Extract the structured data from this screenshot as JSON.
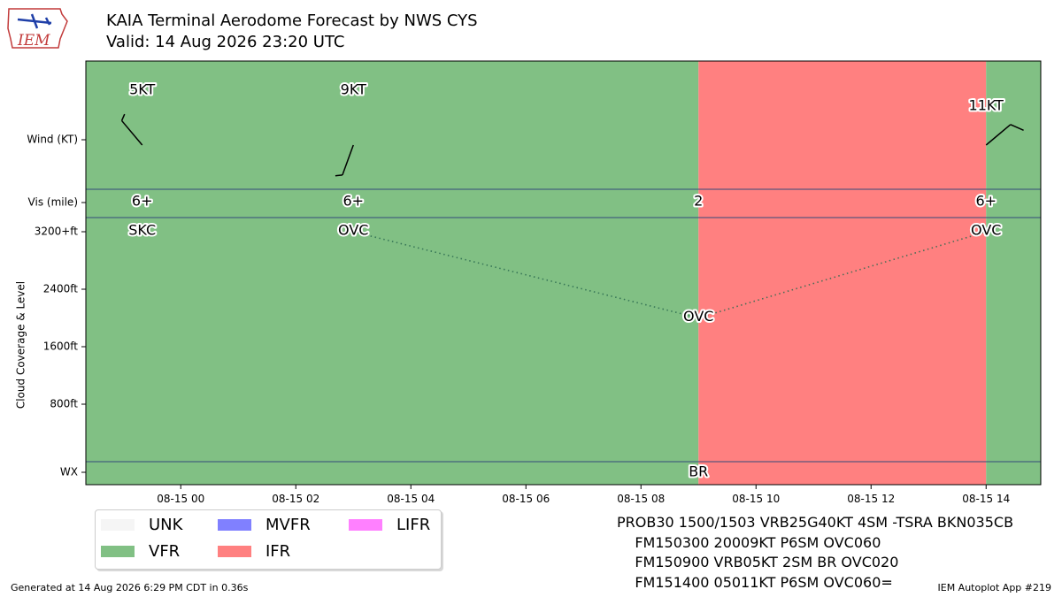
{
  "header": {
    "title": "KAIA Terminal Aerodome Forecast by NWS CYS",
    "valid": "Valid: 14 Aug 2026 23:20 UTC"
  },
  "logo": {
    "text": "IEM",
    "icon": "iowa-state-logo-icon"
  },
  "colors": {
    "UNK": "#f5f5f5",
    "VFR": "#81c084",
    "MVFR": "#8080ff",
    "IFR": "#ff8080",
    "LIFR": "#ff80ff",
    "separator": "#344a7a"
  },
  "chart_data": {
    "type": "timeline",
    "x_ticks": [
      "08-15 00",
      "08-15 02",
      "08-15 04",
      "08-15 06",
      "08-15 08",
      "08-15 10",
      "08-15 12",
      "08-15 14"
    ],
    "x_tick_hours": [
      0,
      2,
      4,
      6,
      8,
      10,
      12,
      14
    ],
    "xlim_hours": [
      -1.65,
      14.95
    ],
    "row_labels": {
      "wind": "Wind (KT)",
      "vis": "Vis (mile)",
      "cloud_axis": "Cloud Coverage & Level",
      "wx": "WX"
    },
    "cloud_ticks": [
      "3200+ft",
      "2400ft",
      "1600ft",
      "800ft"
    ],
    "cloud_tick_values": [
      3200,
      2400,
      1600,
      800
    ],
    "cloud_ylim": [
      -300,
      3700
    ],
    "periods": [
      {
        "start_hour": -1.65,
        "end_hour": 9.0,
        "category": "VFR"
      },
      {
        "start_hour": 9.0,
        "end_hour": 14.0,
        "category": "IFR"
      },
      {
        "start_hour": 14.0,
        "end_hour": 14.95,
        "category": "VFR"
      }
    ],
    "forecasts": [
      {
        "hour": -0.67,
        "wind_label": "5KT",
        "wind_dir": 320,
        "wind_kt": 5,
        "vis": "6+",
        "cloud": "SKC",
        "cloud_ft": 3200,
        "wx": ""
      },
      {
        "hour": 3.0,
        "wind_label": "9KT",
        "wind_dir": 200,
        "wind_kt": 9,
        "vis": "6+",
        "cloud": "OVC",
        "cloud_ft": 3200,
        "wx": ""
      },
      {
        "hour": 9.0,
        "wind_label": "",
        "wind_dir": null,
        "wind_kt": 5,
        "vis": "2",
        "cloud": "OVC",
        "cloud_ft": 2000,
        "wx": "BR"
      },
      {
        "hour": 14.0,
        "wind_label": "11KT",
        "wind_dir": 50,
        "wind_kt": 11,
        "vis": "6+",
        "cloud": "OVC",
        "cloud_ft": 3200,
        "wx": ""
      }
    ]
  },
  "legend": [
    {
      "label": "UNK",
      "color": "#f5f5f5"
    },
    {
      "label": "VFR",
      "color": "#81c084"
    },
    {
      "label": "MVFR",
      "color": "#8080ff"
    },
    {
      "label": "IFR",
      "color": "#ff8080"
    },
    {
      "label": "LIFR",
      "color": "#ff80ff"
    }
  ],
  "taf": {
    "line1": "PROB30 1500/1503 VRB25G40KT 4SM -TSRA BKN035CB",
    "line2": "    FM150300 20009KT P6SM OVC060",
    "line3": "    FM150900 VRB05KT 2SM BR OVC020",
    "line4": "    FM151400 05011KT P6SM OVC060="
  },
  "footer": {
    "generated": "Generated at 14 Aug 2026 6:29 PM CDT in 0.36s",
    "app": "IEM Autoplot App #219"
  }
}
